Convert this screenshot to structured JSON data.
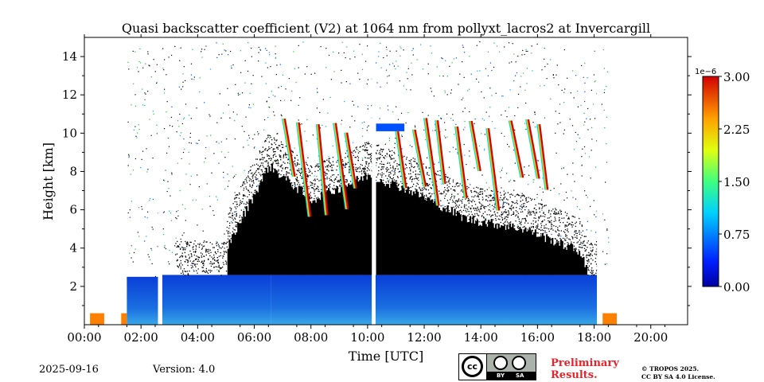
{
  "chart_data": {
    "type": "heatmap",
    "title": "Quasi backscatter coefficient (V2) at 1064 nm from pollyxt_lacros2 at Invercargill",
    "xlabel": "Time [UTC]",
    "ylabel": "Height [km]",
    "xlim_hours": [
      0,
      21.3
    ],
    "ylim_km": [
      0,
      15
    ],
    "x_tick_labels": [
      "00:00",
      "02:00",
      "04:00",
      "06:00",
      "08:00",
      "10:00",
      "12:00",
      "14:00",
      "16:00",
      "18:00",
      "20:00"
    ],
    "x_tick_hours": [
      0,
      2,
      4,
      6,
      8,
      10,
      12,
      14,
      16,
      18,
      20
    ],
    "y_ticks": [
      2,
      4,
      6,
      8,
      10,
      12,
      14
    ],
    "colorbar": {
      "exponent_label": "1e−6",
      "range": [
        0,
        3.0
      ],
      "tick_labels": [
        "0.00",
        "0.75",
        "1.50",
        "2.25",
        "3.00"
      ],
      "tick_values": [
        0,
        0.75,
        1.5,
        2.25,
        3.0
      ],
      "colormap": "jet"
    },
    "data_gaps_hours": [
      [
        2.6,
        2.75
      ],
      [
        10.15,
        10.28
      ],
      [
        18.1,
        18.25
      ]
    ],
    "boundary_layer": [
      {
        "start_hour": 1.5,
        "end_hour": 2.6,
        "top_km": 2.5
      },
      {
        "start_hour": 2.75,
        "end_hour": 6.6,
        "top_km": 2.6
      },
      {
        "start_hour": 6.6,
        "end_hour": 10.15,
        "top_km": 2.6
      },
      {
        "start_hour": 10.28,
        "end_hour": 18.1,
        "top_km": 2.6
      }
    ],
    "dense_layer_top_km": [
      {
        "hour": 5.0,
        "km": 4.0
      },
      {
        "hour": 6.5,
        "km": 8.3
      },
      {
        "hour": 8.0,
        "km": 6.5
      },
      {
        "hour": 10.0,
        "km": 7.8
      },
      {
        "hour": 11.5,
        "km": 7.0
      },
      {
        "hour": 13.5,
        "km": 5.5
      },
      {
        "hour": 15.5,
        "km": 5.0
      },
      {
        "hour": 17.5,
        "km": 3.8
      },
      {
        "hour": 18.0,
        "km": 1.5
      }
    ],
    "cirrus_layer_km": [
      9.5,
      11.0
    ]
  },
  "footer": {
    "date": "2025-09-16",
    "version": "Version: 4.0",
    "preliminary_line1": "Preliminary",
    "preliminary_line2": "Results.",
    "copyright_line1": "© TROPOS 2025.",
    "copyright_line2": "CC BY SA 4.0 License.",
    "license_badge": {
      "cc": "cc",
      "by": "BY",
      "sa": "SA"
    }
  },
  "colors": {
    "dense_black": "#000000",
    "background": "#ffffff",
    "preliminary_red": "#e8232b"
  }
}
